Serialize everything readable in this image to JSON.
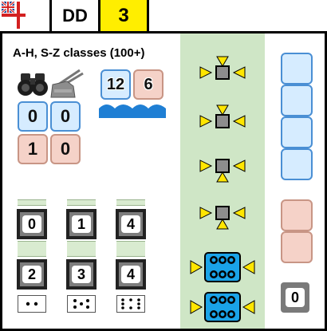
{
  "header": {
    "ship_type": "DD",
    "value": "3"
  },
  "card": {
    "classes": "A-H, S-Z classes (100+)",
    "ratings_top": [
      "12",
      "6"
    ],
    "stats_left": [
      "0",
      "0",
      "1",
      "0"
    ],
    "gun_row_1": [
      "0",
      "1",
      "4"
    ],
    "gun_row_2": [
      "2",
      "3",
      "4"
    ],
    "dice": [
      2,
      5,
      6
    ],
    "flak": "0"
  },
  "colors": {
    "header_number_bg": "#ffee00",
    "blue_box": "#d6ecff",
    "pink_box": "#f5d2c8",
    "green_column": "#cfe6c6",
    "arrow_yellow": "#ffe600",
    "torpedo_blue": "#1aa3e8"
  },
  "icons": {
    "flag": "white-ensign-icon",
    "binoculars": "binoculars-icon",
    "guns": "naval-gun-icon",
    "waves": "sea-waves-icon",
    "arrows": "yellow-arrow-icon",
    "torpedoes": "torpedo-mount-icon"
  }
}
